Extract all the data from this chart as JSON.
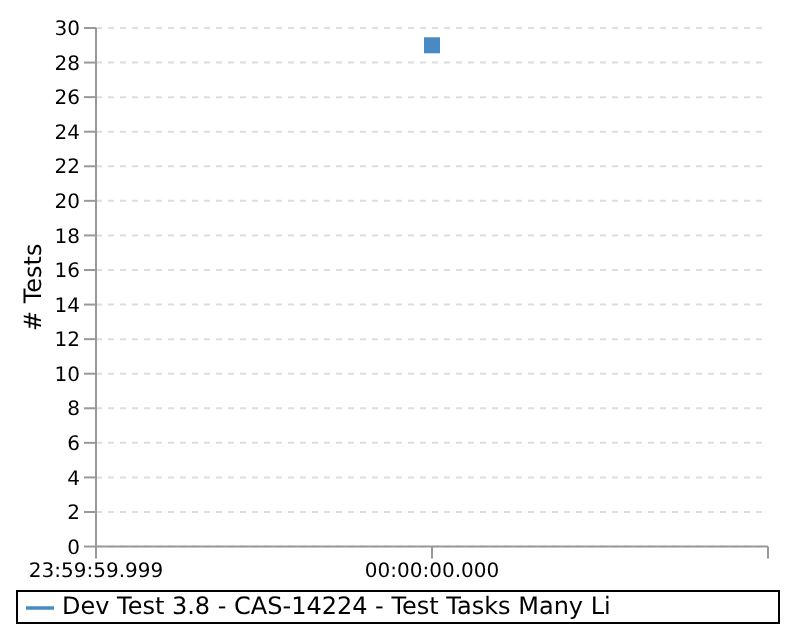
{
  "chart_data": {
    "type": "line",
    "ylabel": "# Tests",
    "categories": [
      "23:59:59.999",
      "00:00:00.000",
      null
    ],
    "series": [
      {
        "name": "Dev Test 3.8 - CAS-14224 - Test Tasks Many Li",
        "color": "#4a8ac4",
        "values": [
          null,
          29,
          null
        ]
      }
    ],
    "ylim": [
      0,
      30
    ],
    "yticks": [
      0,
      2,
      4,
      6,
      8,
      10,
      12,
      14,
      16,
      18,
      20,
      22,
      24,
      26,
      28,
      30
    ],
    "grid": "y",
    "legend": "bottom",
    "marker": "square",
    "line_style": "solid"
  }
}
